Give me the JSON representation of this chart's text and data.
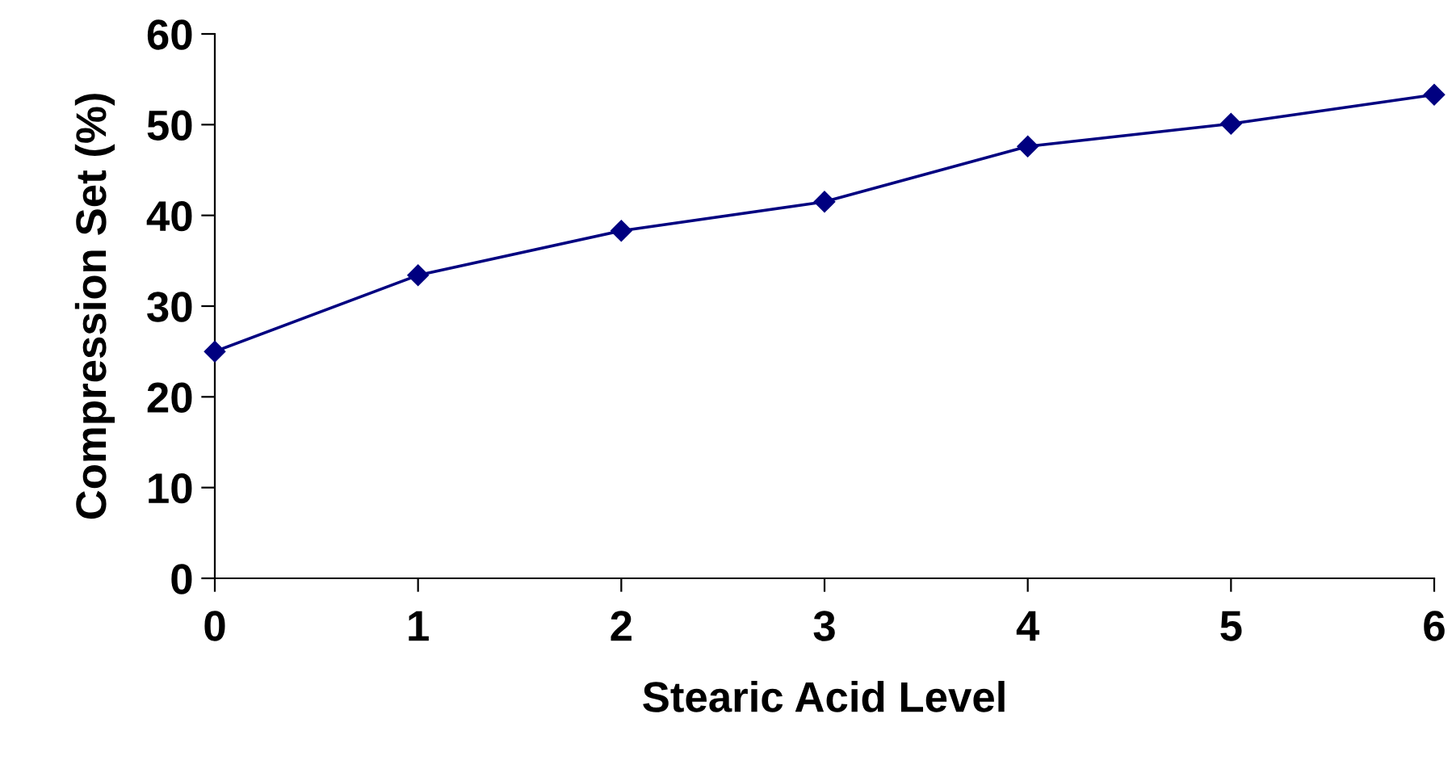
{
  "chart_data": {
    "type": "line",
    "xlabel": "Stearic Acid Level",
    "ylabel": "Compression Set (%)",
    "x": [
      0,
      1,
      2,
      3,
      4,
      5,
      6
    ],
    "series": [
      {
        "color": "#000080",
        "values": [
          25,
          33.4,
          38.3,
          41.5,
          47.6,
          50.1,
          53.3
        ]
      }
    ],
    "xlim": [
      0,
      6
    ],
    "xticks": [
      0,
      1,
      2,
      3,
      4,
      5,
      6
    ],
    "ylim": [
      0,
      60
    ],
    "yticks": [
      0,
      10,
      20,
      30,
      40,
      50,
      60
    ],
    "grid": false,
    "legend": false,
    "marker": "diamond",
    "line_style": "solid"
  }
}
